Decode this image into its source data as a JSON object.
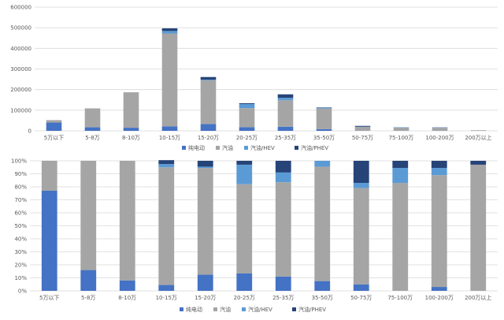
{
  "colors": {
    "纯电动": "#4472c4",
    "汽油": "#a5a5a5",
    "汽油/HEV": "#5b9bd5",
    "汽油/PHEV": "#264478"
  },
  "chart_data": [
    {
      "type": "bar",
      "stacked": true,
      "categories": [
        "5万以下",
        "5-8万",
        "8-10万",
        "10-15万",
        "15-20万",
        "20-25万",
        "25-35万",
        "35-50万",
        "50-75万",
        "75-100万",
        "100-200万",
        "200万以上"
      ],
      "series": [
        {
          "name": "纯电动",
          "values": [
            40000,
            17000,
            15000,
            22000,
            33000,
            18000,
            20000,
            8000,
            1000,
            0,
            1000,
            0
          ]
        },
        {
          "name": "汽油",
          "values": [
            12000,
            92000,
            172000,
            450000,
            212000,
            92000,
            128000,
            101000,
            18000,
            14000,
            14000,
            3000
          ]
        },
        {
          "name": "汽油/HEV",
          "values": [
            0,
            0,
            0,
            12000,
            3000,
            20000,
            12000,
            4000,
            1000,
            2000,
            1000,
            0
          ]
        },
        {
          "name": "汽油/PHEV",
          "values": [
            0,
            0,
            0,
            13000,
            13000,
            4000,
            17000,
            1000,
            4000,
            1000,
            1000,
            0
          ]
        }
      ],
      "yticks": [
        "0",
        "100000",
        "200000",
        "300000",
        "400000",
        "500000",
        "600000"
      ],
      "ylim": [
        0,
        600000
      ],
      "grid": true,
      "legend": "bottom"
    },
    {
      "type": "bar",
      "stacked": true,
      "percent": true,
      "categories": [
        "5万以下",
        "5-8万",
        "8-10万",
        "10-15万",
        "15-20万",
        "20-25万",
        "25-35万",
        "35-50万",
        "50-75万",
        "75-100万",
        "100-200万",
        "200万以上"
      ],
      "series": [
        {
          "name": "纯电动",
          "values": [
            77,
            16,
            8,
            4.5,
            12.5,
            13.5,
            11,
            7.5,
            5,
            0,
            3,
            0
          ]
        },
        {
          "name": "汽油",
          "values": [
            23,
            84,
            92,
            90.5,
            82,
            68.5,
            72.5,
            88,
            74,
            83,
            86,
            97
          ]
        },
        {
          "name": "汽油/HEV",
          "values": [
            0,
            0,
            0,
            2.5,
            1,
            15,
            7.5,
            4.5,
            4,
            11.5,
            5.5,
            0
          ]
        },
        {
          "name": "汽油/PHEV",
          "values": [
            0,
            0,
            0,
            3,
            4.5,
            3,
            9,
            0,
            17,
            5.5,
            5.5,
            3
          ]
        }
      ],
      "yticks": [
        "0%",
        "10%",
        "20%",
        "30%",
        "40%",
        "50%",
        "60%",
        "70%",
        "80%",
        "90%",
        "100%"
      ],
      "ylim": [
        0,
        100
      ],
      "grid": true,
      "legend": "bottom"
    }
  ]
}
